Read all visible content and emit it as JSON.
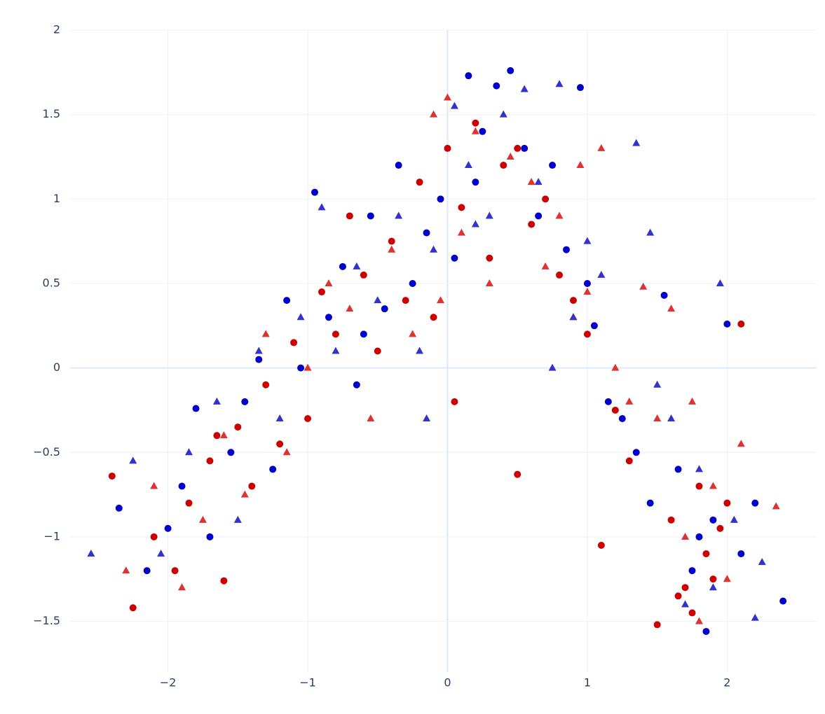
{
  "chart_data": {
    "type": "scatter",
    "xlim": [
      -2.7,
      2.64
    ],
    "ylim": [
      -1.8,
      2.0
    ],
    "xticks": [
      {
        "value": -2,
        "label": "−2"
      },
      {
        "value": -1,
        "label": "−1"
      },
      0,
      1,
      2
    ],
    "yticks": [
      {
        "value": -1.5,
        "label": "−1.5"
      },
      {
        "value": -1,
        "label": "−1"
      },
      {
        "value": -0.5,
        "label": "−0.5"
      },
      0,
      0.5,
      1,
      1.5,
      2
    ],
    "grid": true,
    "series": [
      {
        "color": "#cc0000",
        "marker": "circle",
        "x": [
          -2.25,
          -2.1,
          -1.95,
          -1.85,
          -1.7,
          -1.6,
          -1.5,
          -1.4,
          -1.3,
          -1.2,
          -1.1,
          -1.0,
          -0.9,
          -0.8,
          -0.7,
          -0.6,
          -0.5,
          -0.4,
          -0.3,
          -0.2,
          -0.1,
          0.0,
          0.1,
          0.2,
          0.3,
          0.4,
          0.5,
          0.6,
          0.7,
          0.8,
          0.9,
          1.0,
          1.1,
          1.2,
          1.3,
          1.5,
          1.6,
          1.7,
          1.75,
          1.8,
          1.85,
          1.9,
          1.95,
          2.0,
          2.1,
          -2.4,
          -1.65,
          0.05,
          0.5,
          1.65
        ],
        "y": [
          -1.42,
          -1.0,
          -1.2,
          -0.8,
          -0.55,
          -1.26,
          -0.35,
          -0.7,
          -0.1,
          -0.45,
          0.15,
          -0.3,
          0.45,
          0.2,
          0.9,
          0.55,
          0.1,
          0.75,
          0.4,
          1.1,
          0.3,
          1.3,
          0.95,
          1.45,
          0.65,
          1.2,
          -0.63,
          0.85,
          1.0,
          0.55,
          0.4,
          0.2,
          -1.05,
          -0.25,
          -0.55,
          -1.52,
          -0.9,
          -1.3,
          -1.45,
          -0.7,
          -1.1,
          -1.25,
          -0.95,
          -0.8,
          0.26,
          -0.64,
          -0.4,
          -0.2,
          1.3,
          -1.35
        ]
      },
      {
        "color": "#0000cc",
        "marker": "circle",
        "x": [
          -2.35,
          -2.15,
          -2.0,
          -1.9,
          -1.8,
          -1.7,
          -1.55,
          -1.45,
          -1.35,
          -1.25,
          -1.15,
          -1.05,
          -0.95,
          -0.85,
          -0.75,
          -0.65,
          -0.55,
          -0.45,
          -0.35,
          -0.25,
          -0.15,
          -0.05,
          0.05,
          0.15,
          0.2,
          0.25,
          0.35,
          0.45,
          0.55,
          0.65,
          0.75,
          0.85,
          0.95,
          1.0,
          1.05,
          1.15,
          1.25,
          1.35,
          1.45,
          1.55,
          1.65,
          1.75,
          1.8,
          1.85,
          1.9,
          2.0,
          2.1,
          2.2,
          2.4,
          -0.6
        ],
        "y": [
          -0.83,
          -1.2,
          -0.95,
          -0.7,
          -0.24,
          -1.0,
          -0.5,
          -0.2,
          0.05,
          -0.6,
          0.4,
          0.0,
          1.04,
          0.3,
          0.6,
          -0.1,
          0.9,
          0.35,
          1.2,
          0.5,
          0.8,
          1.0,
          0.65,
          1.73,
          1.1,
          1.4,
          1.67,
          1.76,
          1.3,
          0.9,
          1.2,
          0.7,
          1.66,
          0.5,
          0.25,
          -0.2,
          -0.3,
          -0.5,
          -0.8,
          0.43,
          -0.6,
          -1.2,
          -1.0,
          -1.56,
          -0.9,
          0.26,
          -1.1,
          -0.8,
          -1.38,
          0.2
        ]
      },
      {
        "color": "#dd3333",
        "marker": "triangle-up",
        "x": [
          -2.3,
          -2.1,
          -1.9,
          -1.75,
          -1.6,
          -1.45,
          -1.3,
          -1.15,
          -1.0,
          -0.85,
          -0.7,
          -0.55,
          -0.4,
          -0.25,
          -0.1,
          0.0,
          0.1,
          0.2,
          0.3,
          0.45,
          0.6,
          0.7,
          0.8,
          0.9,
          1.0,
          1.1,
          1.2,
          1.3,
          1.4,
          1.5,
          1.6,
          1.7,
          1.8,
          1.9,
          2.0,
          2.1,
          2.35,
          -0.05,
          0.95,
          1.75
        ],
        "y": [
          -1.2,
          -0.7,
          -1.3,
          -0.9,
          -0.4,
          -0.75,
          0.2,
          -0.5,
          0.0,
          0.5,
          0.35,
          -0.3,
          0.7,
          0.2,
          1.5,
          1.6,
          0.8,
          1.4,
          0.5,
          1.25,
          1.1,
          0.6,
          0.9,
          0.3,
          0.45,
          1.3,
          0.0,
          -0.2,
          0.48,
          -0.3,
          0.35,
          -1.0,
          -1.5,
          -0.7,
          -1.25,
          -0.45,
          -0.82,
          0.4,
          1.2,
          -0.2
        ]
      },
      {
        "color": "#3333cc",
        "marker": "triangle-up",
        "x": [
          -2.55,
          -2.25,
          -2.05,
          -1.85,
          -1.65,
          -1.5,
          -1.35,
          -1.2,
          -1.05,
          -0.9,
          -0.8,
          -0.65,
          -0.5,
          -0.35,
          -0.2,
          -0.1,
          0.05,
          0.15,
          0.3,
          0.4,
          0.55,
          0.65,
          0.8,
          0.9,
          1.0,
          1.1,
          1.35,
          1.45,
          1.6,
          1.7,
          1.8,
          1.9,
          2.05,
          2.2,
          2.25,
          -0.15,
          0.75,
          1.5,
          1.95,
          0.2
        ],
        "y": [
          -1.1,
          -0.55,
          -1.1,
          -0.5,
          -0.2,
          -0.9,
          0.1,
          -0.3,
          0.3,
          0.95,
          0.1,
          0.6,
          0.4,
          0.9,
          0.1,
          0.7,
          1.55,
          1.2,
          0.9,
          1.5,
          1.65,
          1.1,
          1.68,
          0.3,
          0.75,
          0.55,
          1.33,
          0.8,
          -0.3,
          -1.4,
          -0.6,
          -1.3,
          -0.9,
          -1.48,
          -1.15,
          -0.3,
          0.0,
          -0.1,
          0.5,
          0.85
        ]
      }
    ]
  }
}
